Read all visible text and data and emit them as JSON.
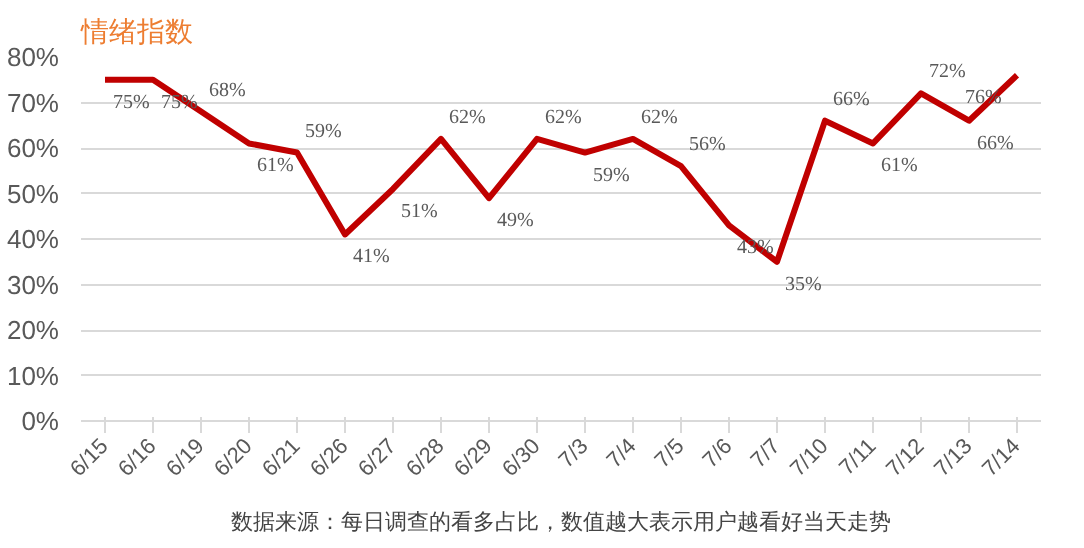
{
  "chart_data": {
    "type": "line",
    "title": "情绪指数",
    "categories": [
      "6/15",
      "6/16",
      "6/19",
      "6/20",
      "6/21",
      "6/26",
      "6/27",
      "6/28",
      "6/29",
      "6/30",
      "7/3",
      "7/4",
      "7/5",
      "7/6",
      "7/7",
      "7/10",
      "7/11",
      "7/12",
      "7/13",
      "7/14"
    ],
    "series": [
      {
        "color": "#c00000",
        "values": [
          75,
          75,
          68,
          61,
          59,
          41,
          51,
          62,
          49,
          62,
          59,
          62,
          56,
          43,
          35,
          66,
          61,
          72,
          66,
          76
        ],
        "value_labels": [
          "75%",
          "75%",
          "68%",
          "61%",
          "59%",
          "41%",
          "51%",
          "62%",
          "49%",
          "62%",
          "59%",
          "62%",
          "56%",
          "43%",
          "35%",
          "66%",
          "61%",
          "72%",
          "66%",
          "76%"
        ]
      }
    ],
    "ylim": [
      0,
      80
    ],
    "yticks": [
      {
        "value": 0,
        "label": "0%"
      },
      {
        "value": 10,
        "label": "10%"
      },
      {
        "value": 20,
        "label": "20%"
      },
      {
        "value": 30,
        "label": "30%"
      },
      {
        "value": 40,
        "label": "40%"
      },
      {
        "value": 50,
        "label": "50%"
      },
      {
        "value": 60,
        "label": "60%"
      },
      {
        "value": 70,
        "label": "70%"
      },
      {
        "value": 80,
        "label": "80%"
      }
    ],
    "grid": "y",
    "marker": "none",
    "line_style": "solid",
    "annotations": [
      "数据来源：每日调查的看多占比，数值越大表示用户越看好当天走势"
    ]
  }
}
